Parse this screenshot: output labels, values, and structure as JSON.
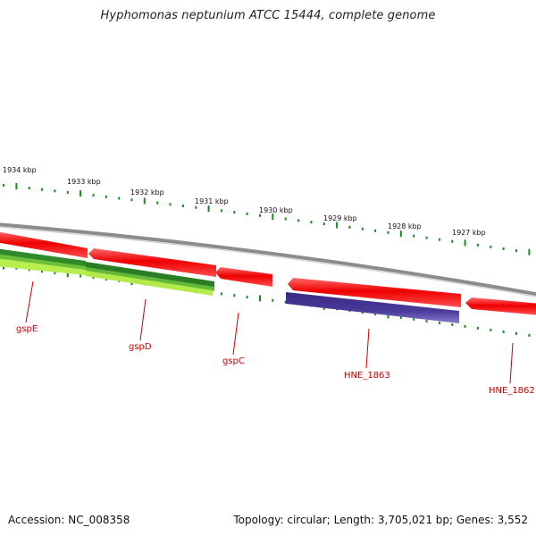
{
  "title": "Hyphomonas neptunium ATCC 15444, complete genome",
  "accession_text": "Accession: NC_008358",
  "summary_text": "Topology: circular; Length: 3,705,021 bp; Genes: 3,552",
  "colors": {
    "backbone": "#8a8a8a",
    "forward_gene": "#ee0000",
    "forward_gene_light": "#ff5555",
    "reverse_green_dark": "#1f7a1f",
    "reverse_green_mid": "#46a832",
    "reverse_green_light": "#9edc3c",
    "reverse_blue": "#3e2f88",
    "reverse_blue_light": "#7e6cc4",
    "ticks": "#1a8a1a",
    "label": "#cc0000"
  },
  "scale_labels": [
    "1934 kbp",
    "1933 kbp",
    "1932 kbp",
    "1931 kbp",
    "1930 kbp",
    "1929 kbp",
    "1928 kbp",
    "1927 kbp"
  ],
  "genes": [
    {
      "name": "gspE",
      "strand": "forward"
    },
    {
      "name": "gspD",
      "strand": "forward"
    },
    {
      "name": "gspC",
      "strand": "forward"
    },
    {
      "name": "HNE_1863",
      "strand": "forward"
    },
    {
      "name": "HNE_1862",
      "strand": "forward"
    }
  ]
}
